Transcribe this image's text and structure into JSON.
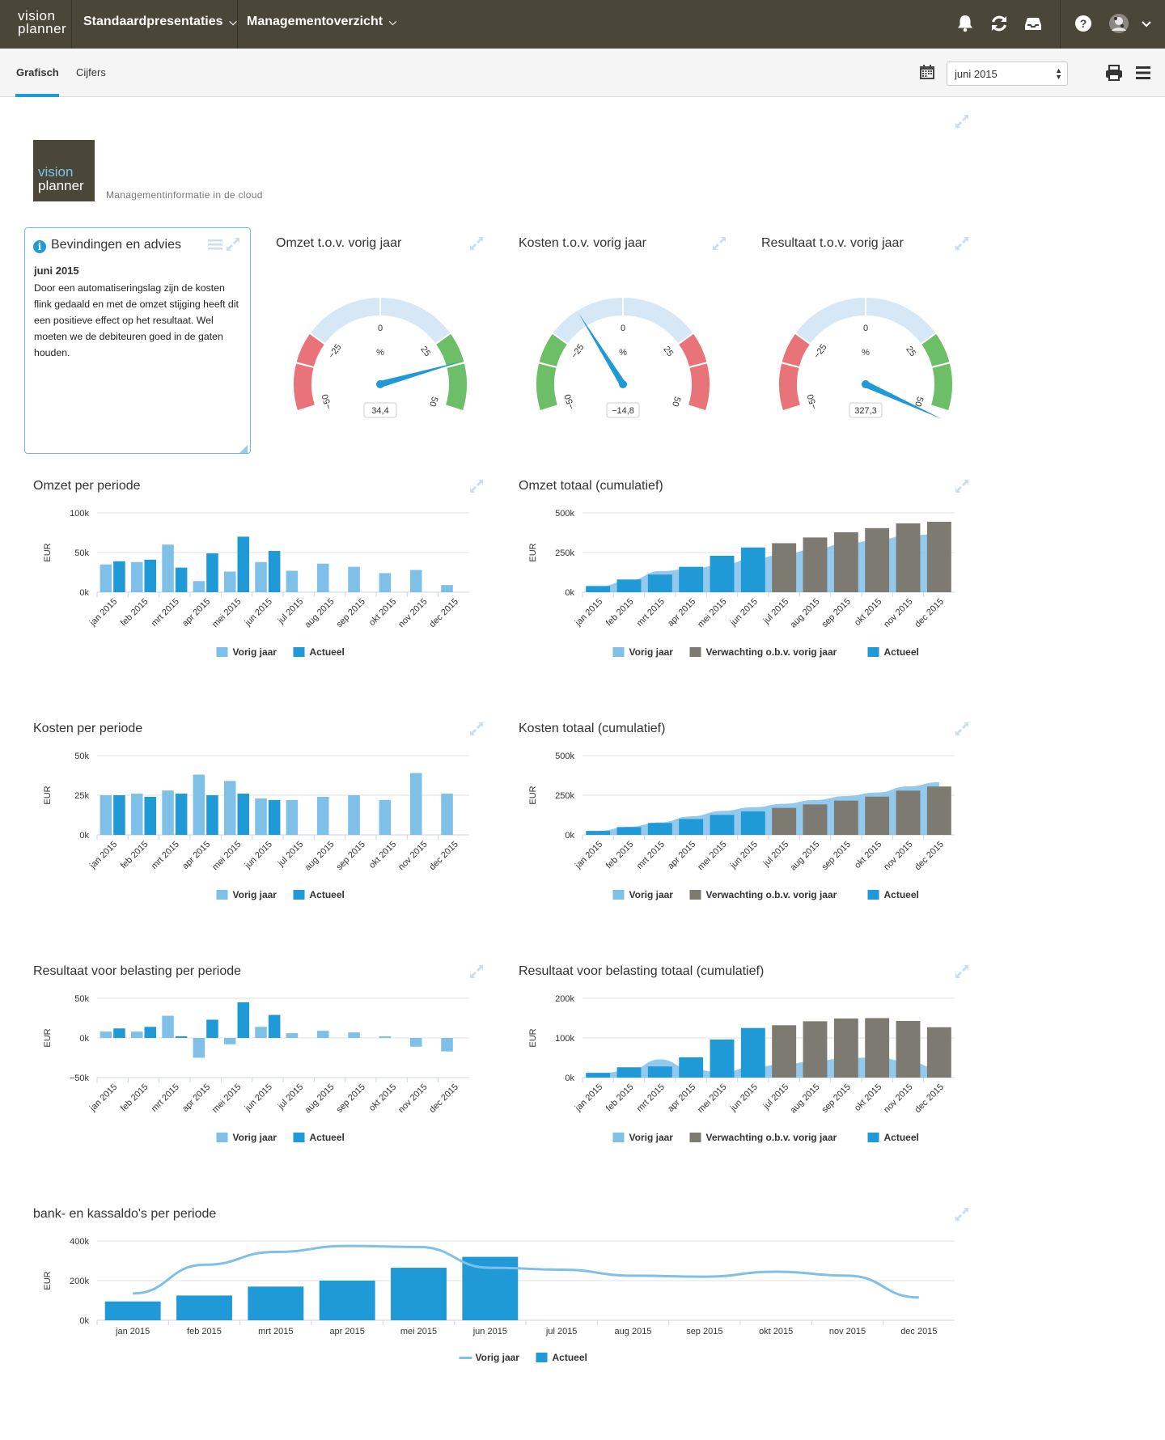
{
  "topbar": {
    "brand_line1": "vision",
    "brand_line2": "planner",
    "nav": [
      "Standaardpresentaties",
      "Managementoverzicht"
    ],
    "icons": [
      "bell-icon",
      "refresh-icon",
      "inbox-icon",
      "help-icon",
      "avatar",
      "chevron-down-icon"
    ]
  },
  "subbar": {
    "tabs": [
      "Grafisch",
      "Cijfers"
    ],
    "period": "juni 2015",
    "icons": [
      "calendar-icon",
      "print-icon",
      "menu-icon"
    ]
  },
  "logo": {
    "line1": "vision",
    "line2": "planner",
    "tagline": "Managementinformatie in de cloud"
  },
  "advice": {
    "title": "Bevindingen en advies",
    "date": "juni 2015",
    "text": "Door een automatiseringslag zijn de kosten flink gedaald en met de omzet stijging heeft dit een positieve effect op het resultaat. Wel moeten we de debiteuren goed in de gaten houden."
  },
  "colors": {
    "accent": "#1f9ad6",
    "light": "#7fc0e9",
    "grey": "#7d7a72",
    "red": "#e8747a",
    "green": "#6dbf67",
    "gaugeband": "#d6e8f6",
    "topbar": "#4a4638"
  },
  "months": [
    "jan 2015",
    "feb 2015",
    "mrt 2015",
    "apr 2015",
    "mei 2015",
    "jun 2015",
    "jul 2015",
    "aug 2015",
    "sep 2015",
    "okt 2015",
    "nov 2015",
    "dec 2015"
  ],
  "legend": {
    "prev": "Vorig jaar",
    "expect": "Verwachting o.b.v. vorig jaar",
    "actual": "Actueel"
  },
  "ylabel": "EUR",
  "chart_data": [
    {
      "type": "gauge",
      "title": "Omzet t.o.v. vorig jaar",
      "value": 34.4,
      "value_label": "34,4",
      "unit": "%",
      "min": -50,
      "max": 50,
      "ticks": [
        "-50",
        "-25",
        "0",
        "25",
        "50"
      ],
      "low_color": "red"
    },
    {
      "type": "gauge",
      "title": "Kosten t.o.v. vorig jaar",
      "value": -14.8,
      "value_label": "-14,8",
      "unit": "%",
      "min": -50,
      "max": 50,
      "ticks": [
        "-50",
        "-25",
        "0",
        "25",
        "50"
      ],
      "low_color": "green"
    },
    {
      "type": "gauge",
      "title": "Resultaat t.o.v. vorig jaar",
      "value": 327.3,
      "value_label": "327,3",
      "unit": "%",
      "min": -50,
      "max": 50,
      "ticks": [
        "-50",
        "-25",
        "0",
        "25",
        "50"
      ],
      "low_color": "red"
    },
    {
      "type": "bar",
      "title": "Omzet per periode",
      "ylim": [
        0,
        100000
      ],
      "yticks": [
        "0k",
        "50k",
        "100k"
      ],
      "series": [
        {
          "name": "Vorig jaar",
          "values": [
            35000,
            38000,
            60000,
            14000,
            26000,
            38000,
            27000,
            36000,
            32000,
            24000,
            28000,
            9000
          ]
        },
        {
          "name": "Actueel",
          "values": [
            39000,
            41000,
            31000,
            49000,
            70000,
            52000,
            null,
            null,
            null,
            null,
            null,
            null
          ]
        }
      ]
    },
    {
      "type": "bar",
      "title": "Omzet totaal (cumulatief)",
      "ylim": [
        0,
        500000
      ],
      "yticks": [
        "0k",
        "250k",
        "500k"
      ],
      "area": {
        "name": "Vorig jaar",
        "values": [
          35000,
          73000,
          133000,
          147000,
          173000,
          211000,
          238000,
          274000,
          306000,
          330000,
          358000,
          367000
        ]
      },
      "bars": [
        {
          "series": "Actueel",
          "values": [
            39000,
            80000,
            111000,
            160000,
            230000,
            282000
          ]
        },
        {
          "series": "Verwachting o.b.v. vorig jaar",
          "values": [
            309000,
            345000,
            378000,
            404000,
            434000,
            444000
          ]
        }
      ]
    },
    {
      "type": "bar",
      "title": "Kosten per periode",
      "ylim": [
        0,
        50000
      ],
      "yticks": [
        "0k",
        "25k",
        "50k"
      ],
      "series": [
        {
          "name": "Vorig jaar",
          "values": [
            25000,
            26000,
            28000,
            38000,
            34000,
            23000,
            22000,
            24000,
            25000,
            22000,
            39000,
            26000
          ]
        },
        {
          "name": "Actueel",
          "values": [
            25000,
            24000,
            26000,
            25000,
            26000,
            22000,
            null,
            null,
            null,
            null,
            null,
            null
          ]
        }
      ]
    },
    {
      "type": "bar",
      "title": "Kosten totaal (cumulatief)",
      "ylim": [
        0,
        500000
      ],
      "yticks": [
        "0k",
        "250k",
        "500k"
      ],
      "area": {
        "name": "Vorig jaar",
        "values": [
          25000,
          51000,
          79000,
          117000,
          151000,
          174000,
          196000,
          220000,
          245000,
          267000,
          306000,
          332000
        ]
      },
      "bars": [
        {
          "series": "Actueel",
          "values": [
            25000,
            49000,
            75000,
            100000,
            126000,
            148000
          ]
        },
        {
          "series": "Verwachting o.b.v. vorig jaar",
          "values": [
            170000,
            192000,
            216000,
            241000,
            279000,
            305000
          ]
        }
      ]
    },
    {
      "type": "bar",
      "title": "Resultaat voor belasting per periode",
      "ylim": [
        -50000,
        50000
      ],
      "yticks": [
        "-50k",
        "0k",
        "50k"
      ],
      "series": [
        {
          "name": "Vorig jaar",
          "values": [
            8000,
            8000,
            28000,
            -25000,
            -8000,
            14000,
            6000,
            9000,
            7000,
            2000,
            -11000,
            -17000
          ]
        },
        {
          "name": "Actueel",
          "values": [
            12000,
            14000,
            2000,
            23000,
            45000,
            29000,
            null,
            null,
            null,
            null,
            null,
            null
          ]
        }
      ]
    },
    {
      "type": "bar",
      "title": "Resultaat voor belasting totaal (cumulatief)",
      "ylim": [
        0,
        200000
      ],
      "yticks": [
        "0k",
        "100k",
        "200k"
      ],
      "area": {
        "name": "Vorig jaar",
        "values": [
          10000,
          18000,
          46000,
          21000,
          13000,
          27000,
          33000,
          42000,
          49000,
          51000,
          40000,
          23000
        ]
      },
      "bars": [
        {
          "series": "Actueel",
          "values": [
            12000,
            26000,
            28000,
            51000,
            96000,
            125000
          ]
        },
        {
          "series": "Verwachting o.b.v. vorig jaar",
          "values": [
            132000,
            142000,
            149000,
            150000,
            143000,
            127000
          ]
        }
      ]
    },
    {
      "type": "bar",
      "title": "bank- en kassaldo's per periode",
      "ylim": [
        0,
        400000
      ],
      "yticks": [
        "0k",
        "200k",
        "400k"
      ],
      "line": {
        "name": "Vorig jaar",
        "values": [
          135000,
          280000,
          345000,
          375000,
          370000,
          265000,
          255000,
          225000,
          220000,
          245000,
          225000,
          115000
        ]
      },
      "series": [
        {
          "name": "Actueel",
          "values": [
            95000,
            125000,
            170000,
            200000,
            265000,
            320000,
            null,
            null,
            null,
            null,
            null,
            null
          ]
        }
      ]
    }
  ]
}
